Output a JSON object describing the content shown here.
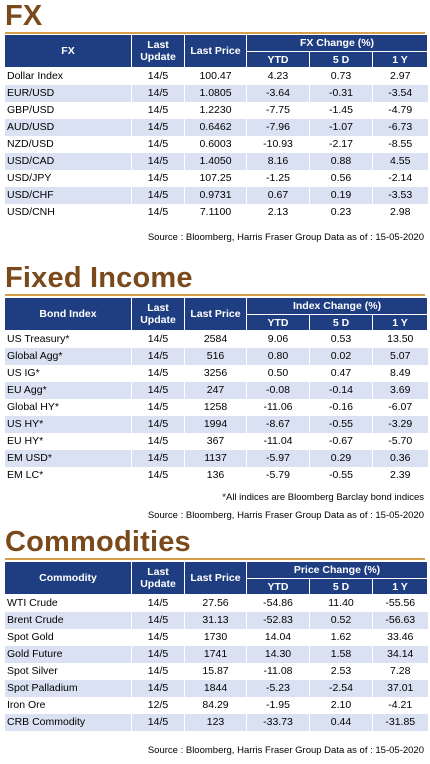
{
  "fx": {
    "title": "FX",
    "headers": {
      "col1": "FX",
      "col2_line1": "Last",
      "col2_line2": "Update",
      "col3": "Last Price",
      "group": "FX Change (%)",
      "ytd": "YTD",
      "d5": "5 D",
      "y1": "1 Y"
    },
    "rows": [
      {
        "name": "Dollar Index",
        "update": "14/5",
        "price": "100.47",
        "ytd": "4.23",
        "d5": "0.73",
        "y1": "2.97"
      },
      {
        "name": "EUR/USD",
        "update": "14/5",
        "price": "1.0805",
        "ytd": "-3.64",
        "d5": "-0.31",
        "y1": "-3.54"
      },
      {
        "name": "GBP/USD",
        "update": "14/5",
        "price": "1.2230",
        "ytd": "-7.75",
        "d5": "-1.45",
        "y1": "-4.79"
      },
      {
        "name": "AUD/USD",
        "update": "14/5",
        "price": "0.6462",
        "ytd": "-7.96",
        "d5": "-1.07",
        "y1": "-6.73"
      },
      {
        "name": "NZD/USD",
        "update": "14/5",
        "price": "0.6003",
        "ytd": "-10.93",
        "d5": "-2.17",
        "y1": "-8.55"
      },
      {
        "name": "USD/CAD",
        "update": "14/5",
        "price": "1.4050",
        "ytd": "8.16",
        "d5": "0.88",
        "y1": "4.55"
      },
      {
        "name": "USD/JPY",
        "update": "14/5",
        "price": "107.25",
        "ytd": "-1.25",
        "d5": "0.56",
        "y1": "-2.14"
      },
      {
        "name": "USD/CHF",
        "update": "14/5",
        "price": "0.9731",
        "ytd": "0.67",
        "d5": "0.19",
        "y1": "-3.53"
      },
      {
        "name": "USD/CNH",
        "update": "14/5",
        "price": "7.1100",
        "ytd": "2.13",
        "d5": "0.23",
        "y1": "2.98"
      }
    ],
    "source": "Source : Bloomberg, Harris Fraser Group Data as of : 15-05-2020"
  },
  "fixed_income": {
    "title": "Fixed Income",
    "headers": {
      "col1": "Bond Index",
      "col2_line1": "Last",
      "col2_line2": "Update",
      "col3": "Last Price",
      "group": "Index Change (%)",
      "ytd": "YTD",
      "d5": "5 D",
      "y1": "1 Y"
    },
    "rows": [
      {
        "name": "US Treasury*",
        "update": "14/5",
        "price": "2584",
        "ytd": "9.06",
        "d5": "0.53",
        "y1": "13.50"
      },
      {
        "name": "Global Agg*",
        "update": "14/5",
        "price": "516",
        "ytd": "0.80",
        "d5": "0.02",
        "y1": "5.07"
      },
      {
        "name": "US IG*",
        "update": "14/5",
        "price": "3256",
        "ytd": "0.50",
        "d5": "0.47",
        "y1": "8.49"
      },
      {
        "name": "EU Agg*",
        "update": "14/5",
        "price": "247",
        "ytd": "-0.08",
        "d5": "-0.14",
        "y1": "3.69"
      },
      {
        "name": "Global HY*",
        "update": "14/5",
        "price": "1258",
        "ytd": "-11.06",
        "d5": "-0.16",
        "y1": "-6.07"
      },
      {
        "name": "US HY*",
        "update": "14/5",
        "price": "1994",
        "ytd": "-8.67",
        "d5": "-0.55",
        "y1": "-3.29"
      },
      {
        "name": "EU HY*",
        "update": "14/5",
        "price": "367",
        "ytd": "-11.04",
        "d5": "-0.67",
        "y1": "-5.70"
      },
      {
        "name": "EM USD*",
        "update": "14/5",
        "price": "1137",
        "ytd": "-5.97",
        "d5": "0.29",
        "y1": "0.36"
      },
      {
        "name": "EM LC*",
        "update": "14/5",
        "price": "136",
        "ytd": "-5.79",
        "d5": "-0.55",
        "y1": "2.39"
      }
    ],
    "note": "*All indices are Bloomberg Barclay bond indices",
    "source": "Source : Bloomberg, Harris Fraser Group Data as of : 15-05-2020"
  },
  "commodities": {
    "title": "Commodities",
    "headers": {
      "col1": "Commodity",
      "col2_line1": "Last",
      "col2_line2": "Update",
      "col3": "Last Price",
      "group": "Price Change (%)",
      "ytd": "YTD",
      "d5": "5 D",
      "y1": "1 Y"
    },
    "rows": [
      {
        "name": "WTI Crude",
        "update": "14/5",
        "price": "27.56",
        "ytd": "-54.86",
        "d5": "11.40",
        "y1": "-55.56"
      },
      {
        "name": "Brent Crude",
        "update": "14/5",
        "price": "31.13",
        "ytd": "-52.83",
        "d5": "0.52",
        "y1": "-56.63"
      },
      {
        "name": "Spot Gold",
        "update": "14/5",
        "price": "1730",
        "ytd": "14.04",
        "d5": "1.62",
        "y1": "33.46"
      },
      {
        "name": "Gold Future",
        "update": "14/5",
        "price": "1741",
        "ytd": "14.30",
        "d5": "1.58",
        "y1": "34.14"
      },
      {
        "name": "Spot Silver",
        "update": "14/5",
        "price": "15.87",
        "ytd": "-11.08",
        "d5": "2.53",
        "y1": "7.28"
      },
      {
        "name": "Spot Palladium",
        "update": "14/5",
        "price": "1844",
        "ytd": "-5.23",
        "d5": "-2.54",
        "y1": "37.01"
      },
      {
        "name": "Iron Ore",
        "update": "12/5",
        "price": "84.29",
        "ytd": "-1.95",
        "d5": "2.10",
        "y1": "-4.21"
      },
      {
        "name": "CRB Commodity",
        "update": "14/5",
        "price": "123",
        "ytd": "-33.73",
        "d5": "0.44",
        "y1": "-31.85"
      }
    ],
    "source": "Source : Bloomberg, Harris Fraser Group Data as of : 15-05-2020"
  },
  "colors": {
    "header_bg": "#1f3e82",
    "alt_row": "#d9e1f2",
    "title_text": "#7a4a1c",
    "title_rule": "#d6a04a"
  }
}
